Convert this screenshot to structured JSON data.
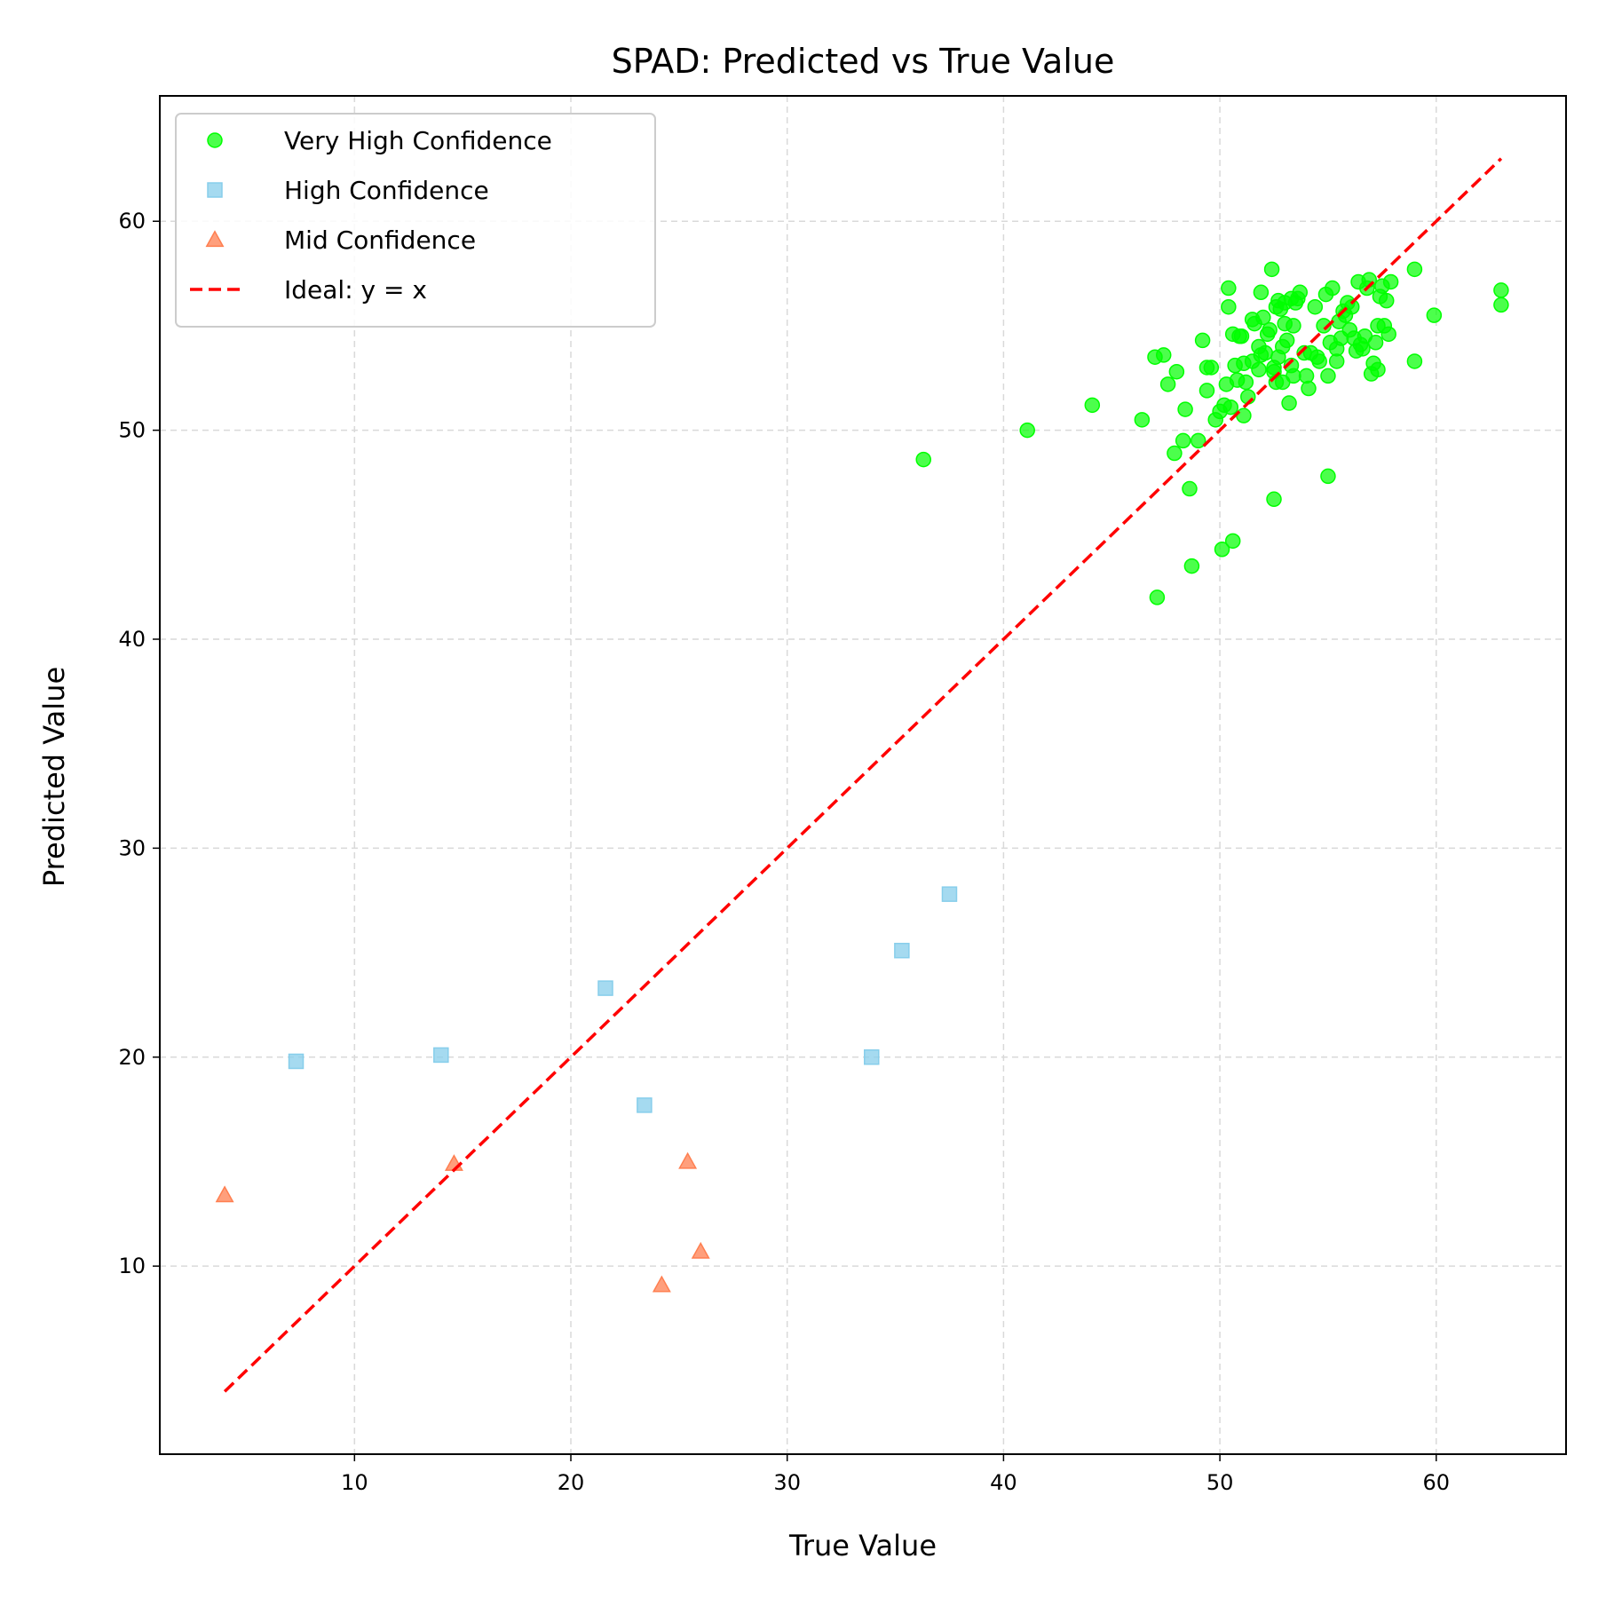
{
  "chart_data": {
    "type": "scatter",
    "title": "SPAD: Predicted vs True Value",
    "xlabel": "True Value",
    "ylabel": "Predicted Value",
    "xlim": [
      1,
      66
    ],
    "ylim": [
      1,
      66
    ],
    "xticks": [
      10,
      20,
      30,
      40,
      50,
      60
    ],
    "yticks": [
      10,
      20,
      30,
      40,
      50,
      60
    ],
    "grid": true,
    "legend_position": "top-left",
    "series": [
      {
        "name": "Very High Confidence",
        "marker": "circle",
        "color": "#00ff00",
        "points": [
          [
            36.3,
            48.6
          ],
          [
            41.1,
            50.0
          ],
          [
            44.1,
            51.2
          ],
          [
            46.4,
            50.5
          ],
          [
            47.1,
            42.0
          ],
          [
            47.0,
            53.5
          ],
          [
            47.4,
            53.6
          ],
          [
            47.6,
            52.2
          ],
          [
            47.9,
            48.9
          ],
          [
            48.0,
            52.8
          ],
          [
            48.3,
            49.5
          ],
          [
            48.4,
            51.0
          ],
          [
            48.6,
            47.2
          ],
          [
            48.7,
            43.5
          ],
          [
            49.0,
            49.5
          ],
          [
            49.2,
            54.3
          ],
          [
            49.4,
            53.0
          ],
          [
            49.4,
            51.9
          ],
          [
            49.6,
            53.0
          ],
          [
            49.8,
            50.5
          ],
          [
            50.0,
            50.9
          ],
          [
            50.1,
            44.3
          ],
          [
            50.2,
            51.2
          ],
          [
            50.3,
            52.2
          ],
          [
            50.4,
            56.8
          ],
          [
            50.4,
            55.9
          ],
          [
            50.5,
            51.1
          ],
          [
            50.6,
            44.7
          ],
          [
            50.6,
            54.6
          ],
          [
            50.7,
            53.1
          ],
          [
            50.8,
            52.4
          ],
          [
            50.9,
            54.5
          ],
          [
            51.0,
            54.5
          ],
          [
            51.1,
            53.2
          ],
          [
            51.1,
            50.7
          ],
          [
            51.2,
            52.3
          ],
          [
            51.3,
            51.6
          ],
          [
            51.5,
            53.3
          ],
          [
            51.5,
            55.3
          ],
          [
            51.6,
            55.1
          ],
          [
            51.8,
            54.0
          ],
          [
            51.8,
            52.9
          ],
          [
            51.9,
            53.6
          ],
          [
            51.9,
            56.6
          ],
          [
            52.0,
            55.4
          ],
          [
            52.1,
            53.7
          ],
          [
            52.2,
            54.6
          ],
          [
            52.3,
            54.8
          ],
          [
            52.4,
            57.7
          ],
          [
            52.5,
            46.7
          ],
          [
            52.5,
            52.8
          ],
          [
            52.5,
            53.0
          ],
          [
            52.6,
            52.3
          ],
          [
            52.6,
            55.9
          ],
          [
            52.7,
            53.5
          ],
          [
            52.7,
            56.2
          ],
          [
            52.8,
            55.8
          ],
          [
            52.9,
            52.3
          ],
          [
            52.9,
            54.0
          ],
          [
            53.0,
            56.1
          ],
          [
            53.0,
            55.1
          ],
          [
            53.1,
            54.3
          ],
          [
            53.2,
            51.3
          ],
          [
            53.3,
            56.3
          ],
          [
            53.3,
            53.1
          ],
          [
            53.4,
            55.0
          ],
          [
            53.4,
            52.6
          ],
          [
            53.5,
            56.1
          ],
          [
            53.6,
            56.3
          ],
          [
            53.7,
            56.6
          ],
          [
            53.9,
            53.7
          ],
          [
            54.0,
            52.6
          ],
          [
            54.1,
            52.0
          ],
          [
            54.2,
            53.7
          ],
          [
            54.4,
            55.9
          ],
          [
            54.5,
            53.5
          ],
          [
            54.6,
            53.3
          ],
          [
            54.8,
            55.0
          ],
          [
            54.9,
            56.5
          ],
          [
            55.0,
            47.8
          ],
          [
            55.0,
            52.6
          ],
          [
            55.1,
            54.2
          ],
          [
            55.2,
            56.8
          ],
          [
            55.4,
            53.3
          ],
          [
            55.4,
            53.9
          ],
          [
            55.5,
            55.2
          ],
          [
            55.6,
            54.4
          ],
          [
            55.7,
            55.7
          ],
          [
            55.8,
            55.5
          ],
          [
            55.9,
            56.1
          ],
          [
            56.0,
            54.8
          ],
          [
            56.1,
            55.9
          ],
          [
            56.2,
            54.4
          ],
          [
            56.3,
            53.8
          ],
          [
            56.4,
            57.1
          ],
          [
            56.5,
            54.1
          ],
          [
            56.6,
            53.9
          ],
          [
            56.7,
            54.5
          ],
          [
            56.8,
            56.8
          ],
          [
            56.9,
            57.2
          ],
          [
            57.0,
            52.7
          ],
          [
            57.1,
            53.2
          ],
          [
            57.2,
            54.2
          ],
          [
            57.3,
            55.0
          ],
          [
            57.3,
            52.9
          ],
          [
            57.4,
            56.4
          ],
          [
            57.5,
            56.9
          ],
          [
            57.6,
            55.0
          ],
          [
            57.7,
            56.2
          ],
          [
            57.8,
            54.6
          ],
          [
            57.9,
            57.1
          ],
          [
            59.0,
            57.7
          ],
          [
            59.0,
            53.3
          ],
          [
            59.9,
            55.5
          ],
          [
            63.0,
            56.7
          ],
          [
            63.0,
            56.0
          ]
        ]
      },
      {
        "name": "High Confidence",
        "marker": "square",
        "color": "#87ceeb",
        "points": [
          [
            7.3,
            19.8
          ],
          [
            14.0,
            20.1
          ],
          [
            21.6,
            23.3
          ],
          [
            23.4,
            17.7
          ],
          [
            33.9,
            20.0
          ],
          [
            35.3,
            25.1
          ],
          [
            37.5,
            27.8
          ]
        ]
      },
      {
        "name": "Mid Confidence",
        "marker": "triangle",
        "color": "#ff7f50",
        "points": [
          [
            4.0,
            13.4
          ],
          [
            14.6,
            14.9
          ],
          [
            24.2,
            9.1
          ],
          [
            25.4,
            15.0
          ],
          [
            26.0,
            10.7
          ]
        ]
      },
      {
        "name": "Ideal: y = x",
        "marker": "line",
        "style": "dashed",
        "color": "#ff0000",
        "points": [
          [
            4.0,
            4.0
          ],
          [
            63.0,
            63.0
          ]
        ]
      }
    ]
  }
}
